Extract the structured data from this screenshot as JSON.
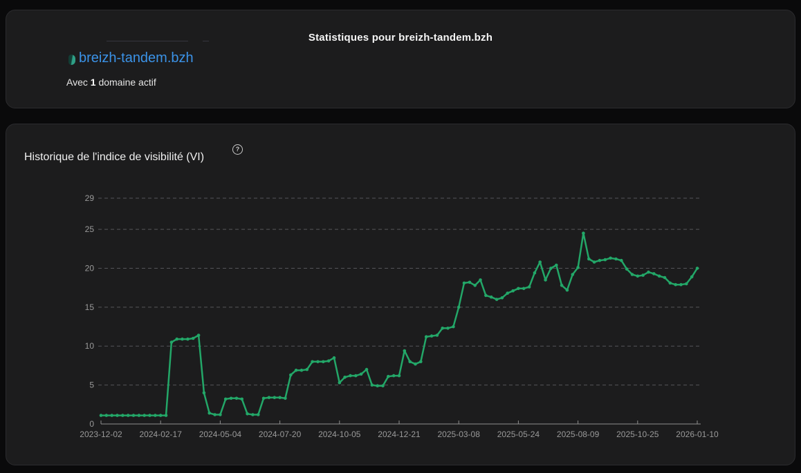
{
  "header_card": {
    "title": "Statistiques pour breizh-tandem.bzh",
    "domain_link": "breizh-tandem.bzh",
    "subtitle_parts": [
      "Avec ",
      "1",
      " domaine actif"
    ]
  },
  "chart_card": {
    "title": "Historique de l'indice de visibilité (VI)"
  },
  "icons": {
    "help_glyph": "?",
    "favicon": "site-favicon"
  },
  "colors": {
    "page_bg": "#0a0a0b",
    "card_bg": "#1c1c1d",
    "card_border": "#2b2b2e",
    "link_blue": "#3b93e8",
    "line_green": "#23a768",
    "grid_gray": "#55555a",
    "axis_gray": "#8f8f8f",
    "tick_label_gray": "#9a9a9a"
  },
  "chart_data": {
    "type": "line",
    "title": "Historique de l'indice de visibilité (VI)",
    "series_name": "Indice de visibilité (VI)",
    "x_start_date": "2023-12-02",
    "x_step_days": 7,
    "x_tick_labels": [
      "2023-12-02",
      "2024-02-17",
      "2024-05-04",
      "2024-07-20",
      "2024-10-05",
      "2024-12-21",
      "2025-03-08",
      "2025-05-24",
      "2025-08-09",
      "2025-10-25",
      "2026-01-10"
    ],
    "y_ticks": [
      0,
      5,
      10,
      15,
      20,
      25,
      29
    ],
    "ylim": [
      0,
      29
    ],
    "grid": "dashed-horizontal",
    "legend": "none",
    "line_color": "#23a768",
    "values": [
      1.1,
      1.1,
      1.1,
      1.1,
      1.1,
      1.1,
      1.1,
      1.1,
      1.1,
      1.1,
      1.1,
      1.1,
      1.1,
      10.5,
      10.9,
      10.9,
      10.9,
      11.0,
      11.4,
      4.0,
      1.4,
      1.2,
      1.2,
      3.2,
      3.3,
      3.3,
      3.2,
      1.3,
      1.2,
      1.2,
      3.3,
      3.4,
      3.4,
      3.4,
      3.3,
      6.3,
      6.9,
      6.9,
      7.0,
      8.0,
      8.0,
      8.0,
      8.1,
      8.5,
      5.3,
      6.0,
      6.2,
      6.2,
      6.4,
      7.0,
      5.0,
      4.9,
      4.9,
      6.1,
      6.2,
      6.2,
      9.4,
      8.0,
      7.7,
      8.0,
      11.2,
      11.3,
      11.4,
      12.3,
      12.3,
      12.5,
      15.0,
      18.1,
      18.2,
      17.8,
      18.5,
      16.5,
      16.3,
      16.0,
      16.2,
      16.8,
      17.1,
      17.4,
      17.4,
      17.6,
      19.4,
      20.8,
      18.5,
      20.0,
      20.4,
      17.8,
      17.2,
      19.2,
      20.1,
      24.5,
      21.2,
      20.8,
      21.0,
      21.1,
      21.3,
      21.2,
      21.0,
      19.9,
      19.2,
      19.0,
      19.1,
      19.5,
      19.3,
      19.0,
      18.8,
      18.1,
      17.9,
      17.9,
      18.0,
      18.9,
      20.0
    ]
  }
}
